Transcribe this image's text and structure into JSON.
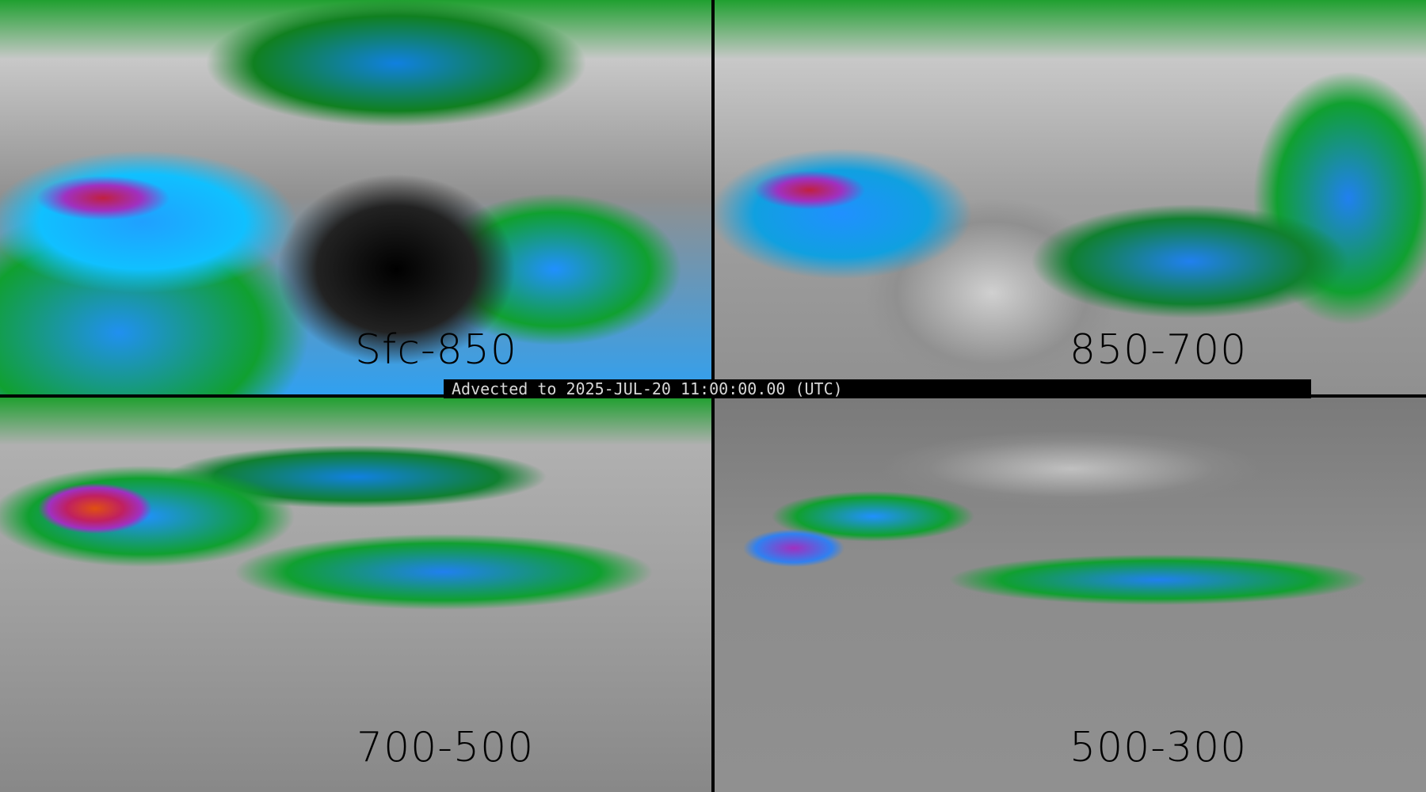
{
  "panels": [
    {
      "level": "Sfc-850"
    },
    {
      "level": "850-700"
    },
    {
      "level": "700-500"
    },
    {
      "level": "500-300"
    }
  ],
  "banner": {
    "text": "Advected to 2025-JUL-20 11:00:00.00 (UTC)"
  },
  "colors": {
    "background": "#000000",
    "label": "#000000",
    "banner_text": "#d8d8d8",
    "low": "#10a030",
    "mid": "#2090ff",
    "high": "#a030c0",
    "max": "#c02040"
  }
}
